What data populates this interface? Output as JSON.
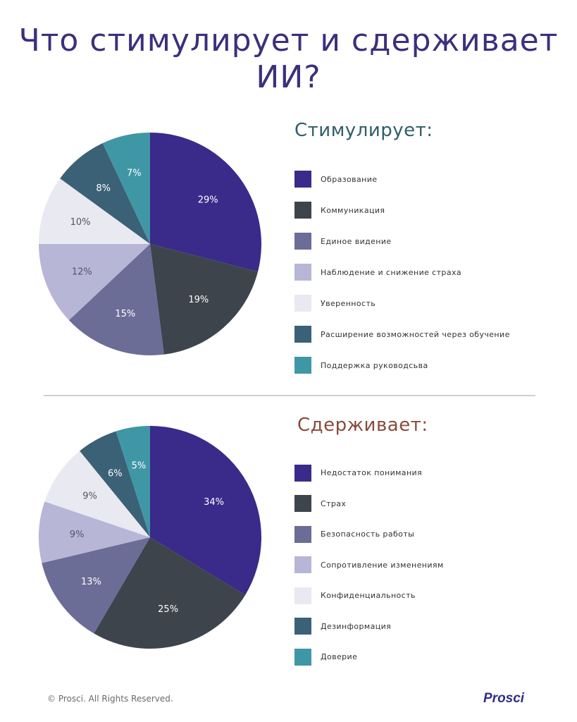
{
  "title": "Что стимулирует и сдерживает ИИ?",
  "colors": [
    "#3a2a8a",
    "#3d444c",
    "#6b6d97",
    "#b8b6d6",
    "#e9e9f1",
    "#3b6176",
    "#3f97a6"
  ],
  "chart_data": [
    {
      "type": "pie",
      "title": "Стимулирует:",
      "categories": [
        "Образование",
        "Коммуникация",
        "Единое видение",
        "Наблюдение и снижение страха",
        "Уверенность",
        "Расширение возможностей через обучение",
        "Поддержка руководсьва"
      ],
      "values": [
        29,
        19,
        15,
        12,
        10,
        8,
        7
      ],
      "value_labels": [
        "29%",
        "19%",
        "15%",
        "12%",
        "10%",
        "8%",
        "7%"
      ],
      "legend_position": "right"
    },
    {
      "type": "pie",
      "title": "Сдерживает:",
      "categories": [
        "Недостаток понимания",
        "Страх",
        "Безопасность работы",
        "Сопротивление изменениям",
        "Конфиденциальность",
        "Дезинформация",
        "Доверие"
      ],
      "values": [
        34,
        25,
        13,
        9,
        9,
        6,
        5
      ],
      "value_labels": [
        "34%",
        "25%",
        "13%",
        "9%",
        "9%",
        "6%",
        "5%"
      ],
      "legend_position": "right"
    }
  ],
  "footer": {
    "copyright": "© Prosci. All Rights Reserved.",
    "logo": "Prosci"
  }
}
